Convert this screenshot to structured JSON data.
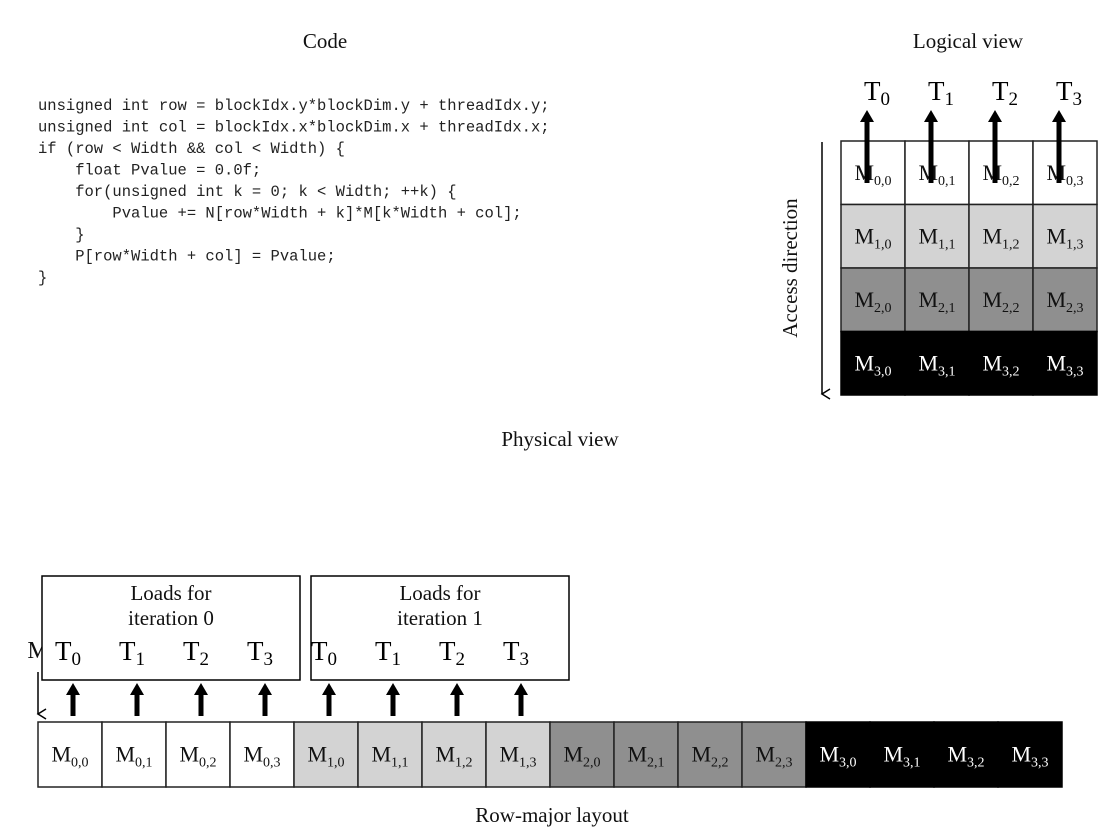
{
  "titles": {
    "code": "Code",
    "logical": "Logical view",
    "physical": "Physical view",
    "row_major": "Row-major layout",
    "access_direction": "Access direction",
    "matrix_label": "M"
  },
  "code_lines": [
    "unsigned int row = blockIdx.y*blockDim.y + threadIdx.y;",
    "unsigned int col = blockIdx.x*blockDim.x + threadIdx.x;",
    "if (row < Width && col < Width) {",
    "    float Pvalue = 0.0f;",
    "    for(unsigned int k = 0; k < Width; ++k) {",
    "        Pvalue += N[row*Width + k]*M[k*Width + col];",
    "    }",
    "    P[row*Width + col] = Pvalue;",
    "}"
  ],
  "threads": [
    {
      "base": "T",
      "sub": "0"
    },
    {
      "base": "T",
      "sub": "1"
    },
    {
      "base": "T",
      "sub": "2"
    },
    {
      "base": "T",
      "sub": "3"
    }
  ],
  "row_colors": [
    "#ffffff",
    "#d3d3d3",
    "#8f8f8f",
    "#000000"
  ],
  "row_text_colors": [
    "#111111",
    "#111111",
    "#111111",
    "#ffffff"
  ],
  "matrix": [
    [
      "0,0",
      "0,1",
      "0,2",
      "0,3"
    ],
    [
      "1,0",
      "1,1",
      "1,2",
      "1,3"
    ],
    [
      "2,0",
      "2,1",
      "2,2",
      "2,3"
    ],
    [
      "3,0",
      "3,1",
      "3,2",
      "3,3"
    ]
  ],
  "load_boxes": [
    {
      "line1": "Loads for",
      "line2": "iteration 0"
    },
    {
      "line1": "Loads for",
      "line2": "iteration 1"
    }
  ]
}
